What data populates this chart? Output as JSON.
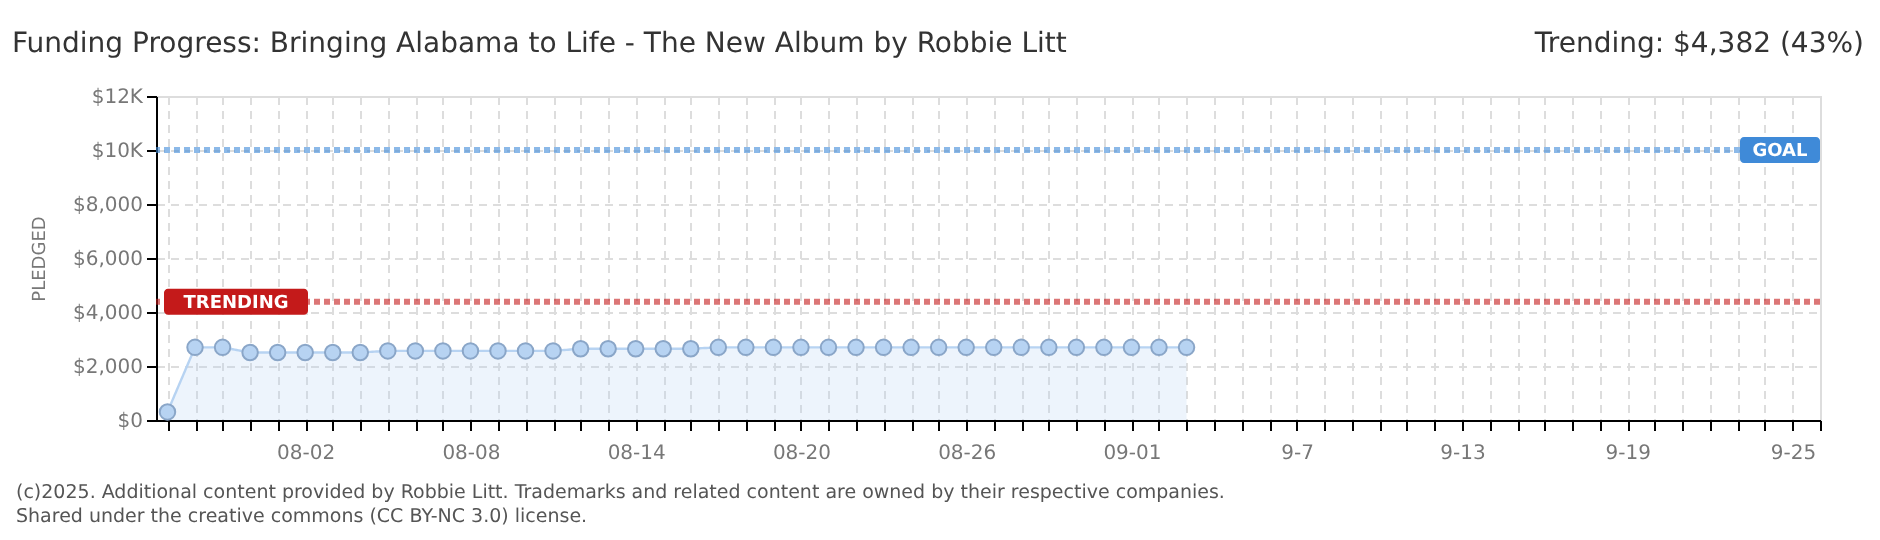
{
  "chart_data": {
    "type": "area",
    "title": "Funding Progress: Bringing Alabama to Life - The New Album by Robbie Litt",
    "ylabel": "PLEDGED",
    "annotations": [
      "Trending: $4,382 (43%)",
      "(c)2025. Additional content provided by Robbie Litt. Trademarks and related content are owned by their respective companies.",
      "Shared under the creative commons (CC BY-NC 3.0) license."
    ],
    "x": [
      "2025-07-28",
      "2025-07-29",
      "2025-07-30",
      "2025-07-31",
      "2025-08-01",
      "2025-08-02",
      "2025-08-03",
      "2025-08-04",
      "2025-08-05",
      "2025-08-06",
      "2025-08-07",
      "2025-08-08",
      "2025-08-09",
      "2025-08-10",
      "2025-08-11",
      "2025-08-12",
      "2025-08-13",
      "2025-08-14",
      "2025-08-15",
      "2025-08-16",
      "2025-08-17",
      "2025-08-18",
      "2025-08-19",
      "2025-08-20",
      "2025-08-21",
      "2025-08-22",
      "2025-08-23",
      "2025-08-24",
      "2025-08-25",
      "2025-08-26",
      "2025-08-27",
      "2025-08-28",
      "2025-08-29",
      "2025-08-30",
      "2025-08-31",
      "2025-09-01",
      "2025-09-02",
      "2025-09-03"
    ],
    "series": [
      {
        "color": "#b7d3f2",
        "values": [
          300,
          2690,
          2690,
          2500,
          2500,
          2500,
          2500,
          2500,
          2560,
          2560,
          2560,
          2560,
          2560,
          2560,
          2560,
          2640,
          2640,
          2640,
          2640,
          2640,
          2690,
          2690,
          2690,
          2690,
          2690,
          2690,
          2690,
          2690,
          2690,
          2690,
          2690,
          2690,
          2690,
          2690,
          2690,
          2690,
          2690,
          2690
        ]
      }
    ],
    "marker": "circle",
    "grid": true,
    "xlim": [
      "2025-07-27T14:00",
      "2025-09-26"
    ],
    "xticks": [
      {
        "value": "2025-07-28",
        "label": null
      },
      {
        "value": "2025-07-29",
        "label": null
      },
      {
        "value": "2025-07-30",
        "label": null
      },
      {
        "value": "2025-07-31",
        "label": null
      },
      {
        "value": "2025-08-01",
        "label": null
      },
      {
        "value": "2025-08-02",
        "label": "08-02"
      },
      {
        "value": "2025-08-03",
        "label": null
      },
      {
        "value": "2025-08-04",
        "label": null
      },
      {
        "value": "2025-08-05",
        "label": null
      },
      {
        "value": "2025-08-06",
        "label": null
      },
      {
        "value": "2025-08-07",
        "label": null
      },
      {
        "value": "2025-08-08",
        "label": "08-08"
      },
      {
        "value": "2025-08-09",
        "label": null
      },
      {
        "value": "2025-08-10",
        "label": null
      },
      {
        "value": "2025-08-11",
        "label": null
      },
      {
        "value": "2025-08-12",
        "label": null
      },
      {
        "value": "2025-08-13",
        "label": null
      },
      {
        "value": "2025-08-14",
        "label": "08-14"
      },
      {
        "value": "2025-08-15",
        "label": null
      },
      {
        "value": "2025-08-16",
        "label": null
      },
      {
        "value": "2025-08-17",
        "label": null
      },
      {
        "value": "2025-08-18",
        "label": null
      },
      {
        "value": "2025-08-19",
        "label": null
      },
      {
        "value": "2025-08-20",
        "label": "08-20"
      },
      {
        "value": "2025-08-21",
        "label": null
      },
      {
        "value": "2025-08-22",
        "label": null
      },
      {
        "value": "2025-08-23",
        "label": null
      },
      {
        "value": "2025-08-24",
        "label": null
      },
      {
        "value": "2025-08-25",
        "label": null
      },
      {
        "value": "2025-08-26",
        "label": "08-26"
      },
      {
        "value": "2025-08-27",
        "label": null
      },
      {
        "value": "2025-08-28",
        "label": null
      },
      {
        "value": "2025-08-29",
        "label": null
      },
      {
        "value": "2025-08-30",
        "label": null
      },
      {
        "value": "2025-08-31",
        "label": null
      },
      {
        "value": "2025-09-01",
        "label": "09-01"
      },
      {
        "value": "2025-09-02",
        "label": null
      },
      {
        "value": "2025-09-03",
        "label": null
      },
      {
        "value": "2025-09-04",
        "label": null
      },
      {
        "value": "2025-09-05",
        "label": null
      },
      {
        "value": "2025-09-06",
        "label": null
      },
      {
        "value": "2025-09-07",
        "label": "9-7"
      },
      {
        "value": "2025-09-08",
        "label": null
      },
      {
        "value": "2025-09-09",
        "label": null
      },
      {
        "value": "2025-09-10",
        "label": null
      },
      {
        "value": "2025-09-11",
        "label": null
      },
      {
        "value": "2025-09-12",
        "label": null
      },
      {
        "value": "2025-09-13",
        "label": "9-13"
      },
      {
        "value": "2025-09-14",
        "label": null
      },
      {
        "value": "2025-09-15",
        "label": null
      },
      {
        "value": "2025-09-16",
        "label": null
      },
      {
        "value": "2025-09-17",
        "label": null
      },
      {
        "value": "2025-09-18",
        "label": null
      },
      {
        "value": "2025-09-19",
        "label": "9-19"
      },
      {
        "value": "2025-09-20",
        "label": null
      },
      {
        "value": "2025-09-21",
        "label": null
      },
      {
        "value": "2025-09-22",
        "label": null
      },
      {
        "value": "2025-09-23",
        "label": null
      },
      {
        "value": "2025-09-24",
        "label": null
      },
      {
        "value": "2025-09-25",
        "label": "9-25"
      },
      {
        "value": "2025-09-26",
        "label": null
      }
    ],
    "ylim": [
      0,
      12000
    ],
    "yticks": [
      {
        "value": 0,
        "label": "$0"
      },
      {
        "value": 2000,
        "label": "$2,000"
      },
      {
        "value": 4000,
        "label": "$4,000"
      },
      {
        "value": 6000,
        "label": "$6,000"
      },
      {
        "value": 8000,
        "label": "$8,000"
      },
      {
        "value": 10000,
        "label": "$10K"
      },
      {
        "value": 12000,
        "label": "$12K"
      }
    ],
    "ref_lines": [
      {
        "axis": "y",
        "value": 10000,
        "label": "GOAL",
        "color": "#3f8ad8",
        "line_style": "dotted"
      },
      {
        "axis": "y",
        "value": 4382,
        "label": "TRENDING",
        "color": "#c41a1a",
        "line_style": "dotted"
      }
    ]
  }
}
